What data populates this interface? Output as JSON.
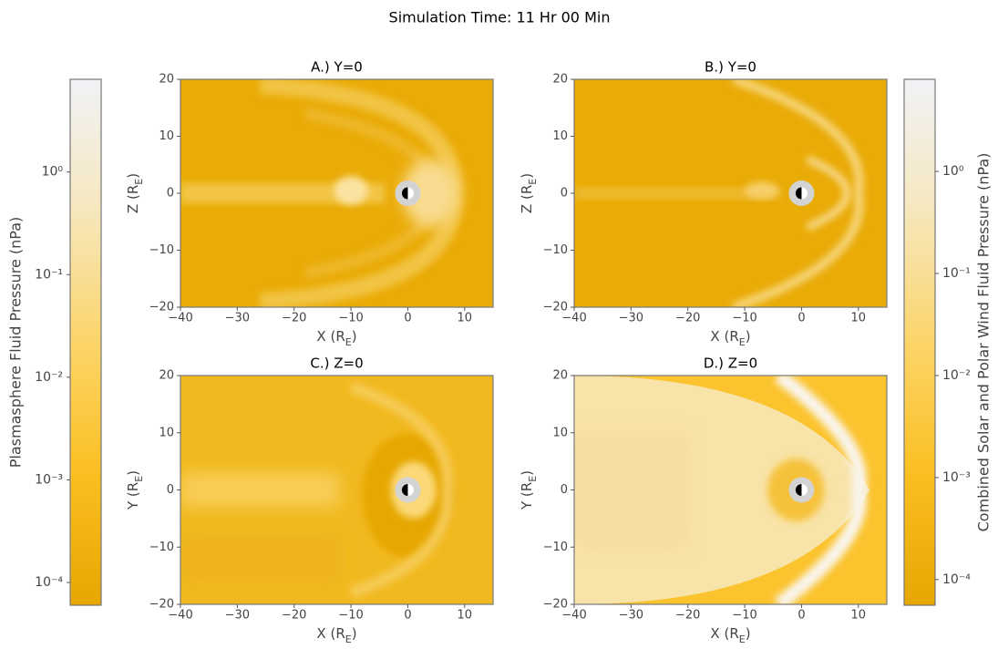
{
  "chart_data": {
    "type": "heatmap",
    "title": "Simulation Time: 11 Hr 00 Min",
    "panels": [
      {
        "title": "A.) Y=0",
        "xlabel": [
          "X (R",
          "E",
          ")"
        ],
        "ylabel": [
          "Z (R",
          "E",
          ")"
        ],
        "xlim": [
          -40,
          15
        ],
        "ylim": [
          -20,
          20
        ],
        "xticks": [
          {
            "value": -40,
            "label": "−40"
          },
          {
            "value": -30,
            "label": "−30"
          },
          {
            "value": -20,
            "label": "−20"
          },
          {
            "value": -10,
            "label": "−10"
          },
          0,
          10
        ],
        "yticks": [
          {
            "value": -20,
            "label": "−20"
          },
          {
            "value": -10,
            "label": "−10"
          },
          0,
          10,
          20
        ]
      },
      {
        "title": "B.) Y=0",
        "xlabel": [
          "X (R",
          "E",
          ")"
        ],
        "ylabel": [
          "Z (R",
          "E",
          ")"
        ],
        "xlim": [
          -40,
          15
        ],
        "ylim": [
          -20,
          20
        ],
        "xticks": [
          {
            "value": -40,
            "label": "−40"
          },
          {
            "value": -30,
            "label": "−30"
          },
          {
            "value": -20,
            "label": "−20"
          },
          {
            "value": -10,
            "label": "−10"
          },
          0,
          10
        ],
        "yticks": [
          {
            "value": -20,
            "label": "−20"
          },
          {
            "value": -10,
            "label": "−10"
          },
          0,
          10,
          20
        ]
      },
      {
        "title": "C.) Z=0",
        "xlabel": [
          "X (R",
          "E",
          ")"
        ],
        "ylabel": [
          "Y (R",
          "E",
          ")"
        ],
        "xlim": [
          -40,
          15
        ],
        "ylim": [
          -20,
          20
        ],
        "xticks": [
          {
            "value": -40,
            "label": "−40"
          },
          {
            "value": -30,
            "label": "−30"
          },
          {
            "value": -20,
            "label": "−20"
          },
          {
            "value": -10,
            "label": "−10"
          },
          0,
          10
        ],
        "yticks": [
          {
            "value": -20,
            "label": "−20"
          },
          {
            "value": -10,
            "label": "−10"
          },
          0,
          10,
          20
        ]
      },
      {
        "title": "D.) Z=0",
        "xlabel": [
          "X (R",
          "E",
          ")"
        ],
        "ylabel": [
          "Y (R",
          "E",
          ")"
        ],
        "xlim": [
          -40,
          15
        ],
        "ylim": [
          -20,
          20
        ],
        "xticks": [
          {
            "value": -40,
            "label": "−40"
          },
          {
            "value": -30,
            "label": "−30"
          },
          {
            "value": -20,
            "label": "−20"
          },
          {
            "value": -10,
            "label": "−10"
          },
          0,
          10
        ],
        "yticks": [
          {
            "value": -20,
            "label": "−20"
          },
          {
            "value": -10,
            "label": "−10"
          },
          0,
          10,
          20
        ]
      }
    ],
    "colorbars": [
      {
        "label": "Plasmasphere Fluid Pressure (nPa)",
        "log_scale": true,
        "lim": [
          6e-05,
          8
        ],
        "ticks": [
          {
            "value": 0.0001,
            "label": "10⁻⁴"
          },
          {
            "value": 0.001,
            "label": "10⁻³"
          },
          {
            "value": 0.01,
            "label": "10⁻²"
          },
          {
            "value": 0.1,
            "label": "10⁻¹"
          },
          {
            "value": 1,
            "label": "10⁰"
          }
        ],
        "colors": [
          "#e6a700",
          "#fbbf22",
          "#fcd56a",
          "#f6e7bd",
          "#f1f2f6"
        ]
      },
      {
        "label": "Combined Solar and Polar Wind Fluid Pressure (nPa)",
        "log_scale": true,
        "lim": [
          5.6e-05,
          8
        ],
        "ticks": [
          {
            "value": 0.0001,
            "label": "10⁻⁴"
          },
          {
            "value": 0.001,
            "label": "10⁻³"
          },
          {
            "value": 0.01,
            "label": "10⁻²"
          },
          {
            "value": 0.1,
            "label": "10⁻¹"
          },
          {
            "value": 1,
            "label": "10⁰"
          }
        ],
        "colors": [
          "#e6a700",
          "#fbbf22",
          "#fcd56a",
          "#f6e7bd",
          "#f1f2f6"
        ]
      }
    ]
  }
}
